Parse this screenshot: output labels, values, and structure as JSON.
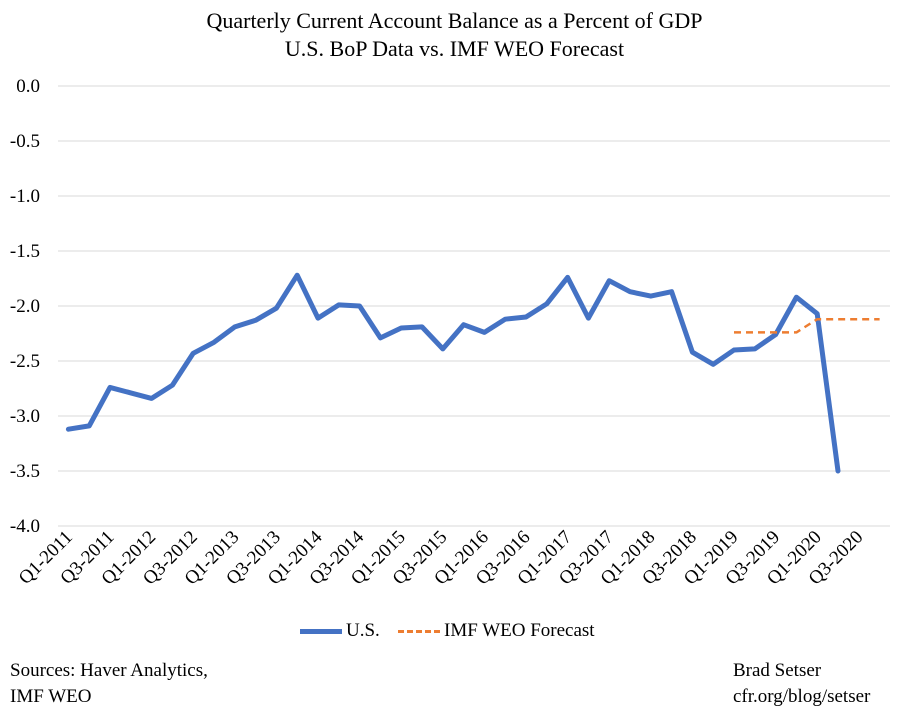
{
  "chart_data": {
    "type": "line",
    "title": "Quarterly Current Account Balance as a Percent of GDP",
    "subtitle": "U.S. BoP Data vs. IMF WEO Forecast",
    "ylim": [
      -4.0,
      0.0
    ],
    "yticks": [
      "0.0",
      "-0.5",
      "-1.0",
      "-1.5",
      "-2.0",
      "-2.5",
      "-3.0",
      "-3.5",
      "-4.0"
    ],
    "ytick_values": [
      0.0,
      -0.5,
      -1.0,
      -1.5,
      -2.0,
      -2.5,
      -3.0,
      -3.5,
      -4.0
    ],
    "categories": [
      "Q1-2011",
      "Q2-2011",
      "Q3-2011",
      "Q4-2011",
      "Q1-2012",
      "Q2-2012",
      "Q3-2012",
      "Q4-2012",
      "Q1-2013",
      "Q2-2013",
      "Q3-2013",
      "Q4-2013",
      "Q1-2014",
      "Q2-2014",
      "Q3-2014",
      "Q4-2014",
      "Q1-2015",
      "Q2-2015",
      "Q3-2015",
      "Q4-2015",
      "Q1-2016",
      "Q2-2016",
      "Q3-2016",
      "Q4-2016",
      "Q1-2017",
      "Q2-2017",
      "Q3-2017",
      "Q4-2017",
      "Q1-2018",
      "Q2-2018",
      "Q3-2018",
      "Q4-2018",
      "Q1-2019",
      "Q2-2019",
      "Q3-2019",
      "Q4-2019",
      "Q1-2020",
      "Q2-2020",
      "Q3-2020",
      "Q4-2020"
    ],
    "xtick_labels": [
      "Q1-2011",
      "Q3-2011",
      "Q1-2012",
      "Q3-2012",
      "Q1-2013",
      "Q3-2013",
      "Q1-2014",
      "Q3-2014",
      "Q1-2015",
      "Q3-2015",
      "Q1-2016",
      "Q3-2016",
      "Q1-2017",
      "Q3-2017",
      "Q1-2018",
      "Q3-2018",
      "Q1-2019",
      "Q3-2019",
      "Q1-2020",
      "Q3-2020"
    ],
    "grid": "horizontal",
    "legend_position": "bottom",
    "series": [
      {
        "name": "U.S.",
        "color": "#4472C4",
        "style": "solid",
        "values": [
          -3.12,
          -3.09,
          -2.74,
          -2.79,
          -2.84,
          -2.72,
          -2.43,
          -2.33,
          -2.19,
          -2.13,
          -2.02,
          -1.72,
          -2.11,
          -1.99,
          -2.0,
          -2.29,
          -2.2,
          -2.19,
          -2.39,
          -2.17,
          -2.24,
          -2.12,
          -2.1,
          -1.98,
          -1.74,
          -2.11,
          -1.77,
          -1.87,
          -1.91,
          -1.87,
          -2.42,
          -2.53,
          -2.4,
          -2.39,
          -2.26,
          -1.92,
          -2.07,
          -3.5,
          null,
          null
        ]
      },
      {
        "name": "IMF WEO Forecast",
        "color": "#ED7D31",
        "style": "dashed",
        "values": [
          null,
          null,
          null,
          null,
          null,
          null,
          null,
          null,
          null,
          null,
          null,
          null,
          null,
          null,
          null,
          null,
          null,
          null,
          null,
          null,
          null,
          null,
          null,
          null,
          null,
          null,
          null,
          null,
          null,
          null,
          null,
          null,
          -2.24,
          -2.24,
          -2.24,
          -2.24,
          -2.12,
          -2.12,
          -2.12,
          -2.12
        ]
      }
    ]
  },
  "sources": {
    "line1": "Sources: Haver Analytics,",
    "line2": "IMF WEO"
  },
  "credit": {
    "line1": "Brad Setser",
    "line2": "cfr.org/blog/setser"
  }
}
